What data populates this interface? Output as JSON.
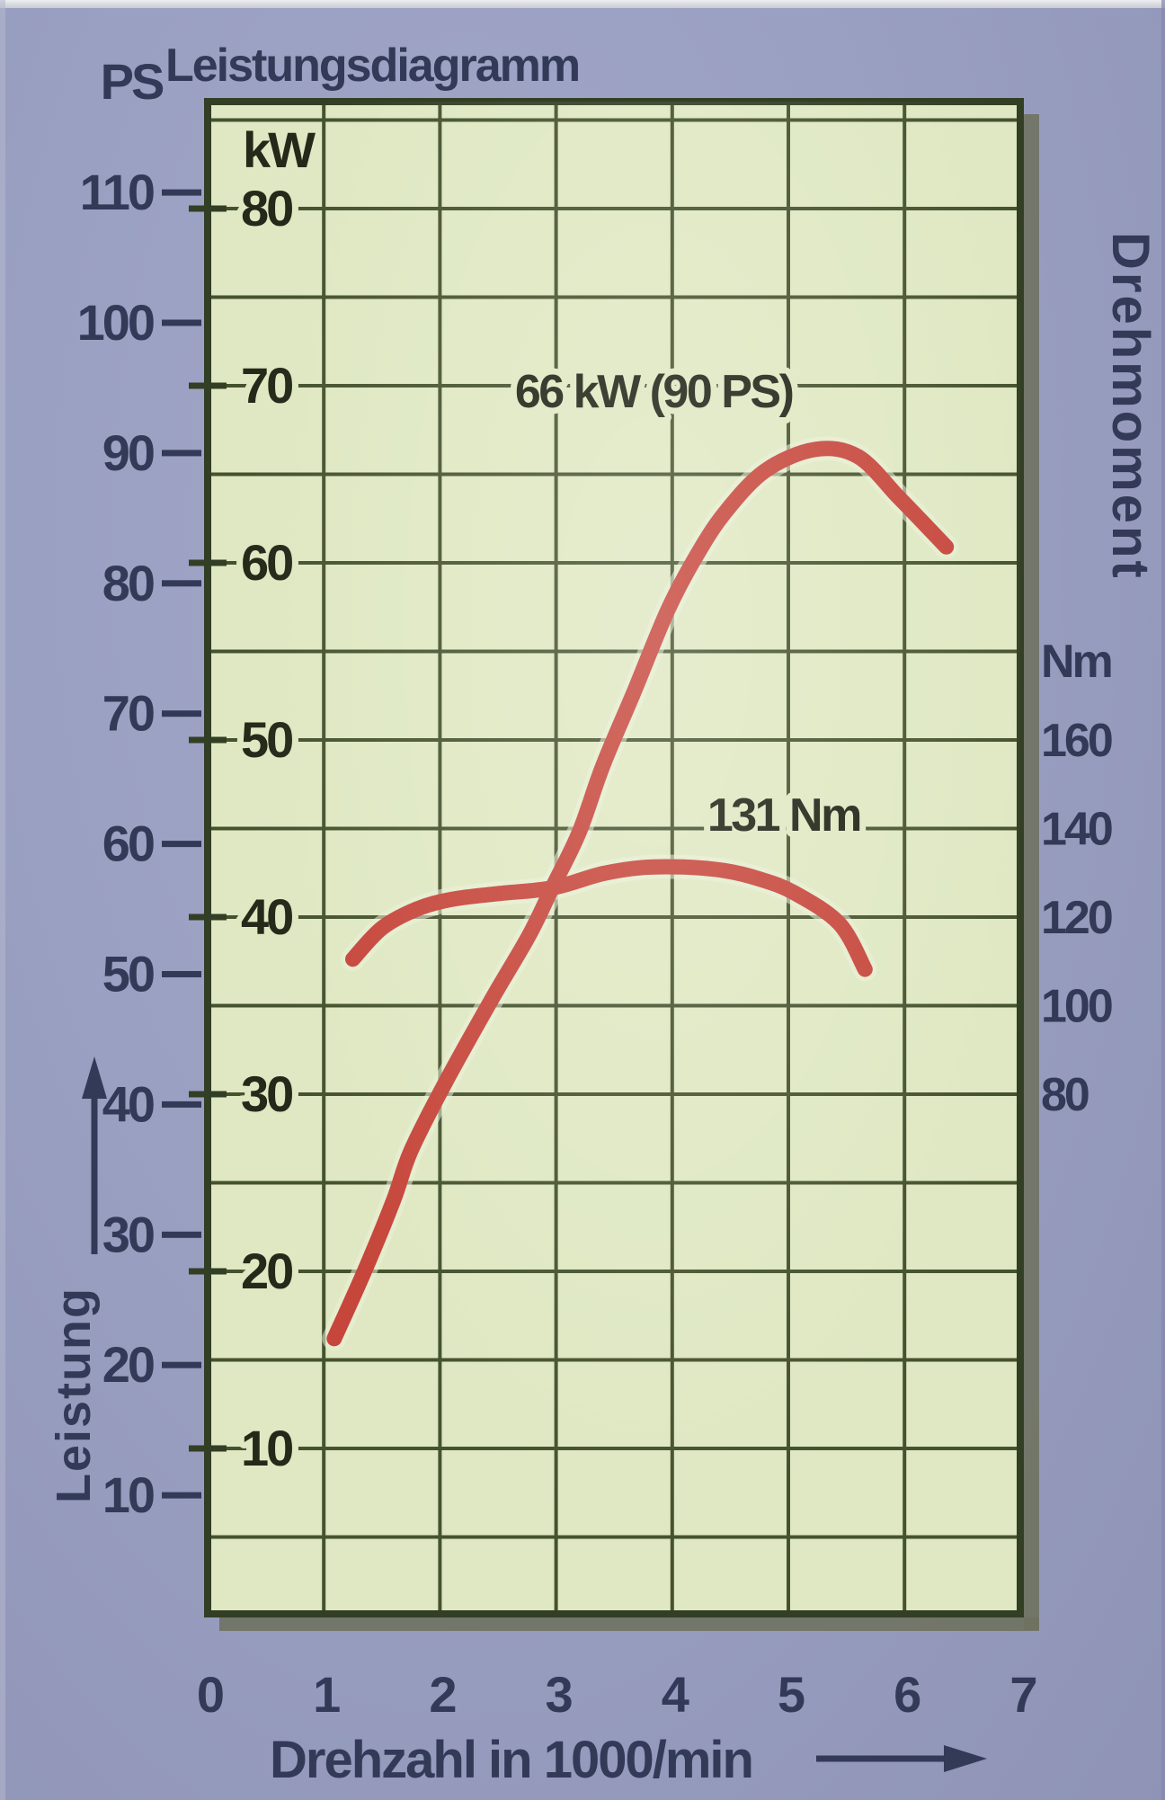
{
  "page": {
    "description": "Scanned engine performance diagram page"
  },
  "colors": {
    "background": "#9aa0c2",
    "plot_fill": "#dfe8c2",
    "grid": "#45522e",
    "border": "#333f24",
    "shadow": "#6f7260",
    "curve": "#c6463b",
    "curve_halo": "#eaf0d8",
    "ink_navy": "#323a58",
    "ink_dark": "#242a19",
    "ink_anno": "#1c2213"
  },
  "chart_data": {
    "type": "line",
    "title": "Leistungsdiagramm",
    "x_axis": {
      "label": "Drehzahl in 1000/min",
      "ticks": [
        0,
        1,
        2,
        3,
        4,
        5,
        6,
        7
      ],
      "range": [
        0,
        7
      ],
      "arrow": "right"
    },
    "left_axis_outer": {
      "unit": "PS",
      "ticks": [
        110,
        100,
        90,
        80,
        70,
        60,
        50,
        40,
        30,
        20,
        10
      ]
    },
    "left_axis_inner": {
      "unit": "kW",
      "ticks": [
        80,
        70,
        60,
        50,
        40,
        30,
        20,
        10
      ]
    },
    "right_axis": {
      "title": "Drehmoment",
      "unit": "Nm",
      "ticks": [
        160,
        140,
        120,
        100,
        80
      ]
    },
    "left_rotated_label": {
      "text": "Leistung",
      "arrow": "up"
    },
    "grid": {
      "horizontal_step_kw": 5,
      "vertical_step_1000min": 1,
      "grid_on": true
    },
    "ylim_kw": [
      0,
      86
    ],
    "legend_position": "none",
    "series": [
      {
        "name": "Leistung (power)",
        "unit": "kW",
        "annotation": "66 kW (90 PS)",
        "annotation_anchor": {
          "x": 3.84,
          "kw": 69.8
        },
        "points": [
          [
            1.09,
            16.2
          ],
          [
            1.35,
            20.0
          ],
          [
            1.6,
            24.0
          ],
          [
            1.75,
            26.8
          ],
          [
            2.05,
            30.7
          ],
          [
            2.45,
            35.4
          ],
          [
            2.77,
            39.0
          ],
          [
            2.97,
            41.7
          ],
          [
            3.2,
            44.8
          ],
          [
            3.4,
            48.5
          ],
          [
            3.67,
            52.7
          ],
          [
            3.96,
            57.3
          ],
          [
            4.2,
            60.3
          ],
          [
            4.45,
            62.8
          ],
          [
            4.8,
            65.2
          ],
          [
            5.23,
            66.4
          ],
          [
            5.6,
            66.0
          ],
          [
            5.95,
            63.7
          ],
          [
            6.2,
            62.0
          ],
          [
            6.36,
            60.9
          ]
        ]
      },
      {
        "name": "Drehmoment (torque)",
        "unit": "Nm",
        "annotation": "131 Nm",
        "annotation_anchor": {
          "x": 4.96,
          "kw": 45.9
        },
        "points": [
          [
            1.25,
            110.5
          ],
          [
            1.5,
            117.5
          ],
          [
            1.8,
            121.8
          ],
          [
            2.1,
            124.0
          ],
          [
            2.5,
            125.3
          ],
          [
            2.97,
            126.6
          ],
          [
            3.4,
            129.8
          ],
          [
            3.75,
            131.2
          ],
          [
            4.1,
            131.3
          ],
          [
            4.45,
            130.5
          ],
          [
            4.75,
            128.6
          ],
          [
            5.05,
            125.5
          ],
          [
            5.44,
            118.5
          ],
          [
            5.66,
            108.2
          ]
        ]
      }
    ]
  }
}
